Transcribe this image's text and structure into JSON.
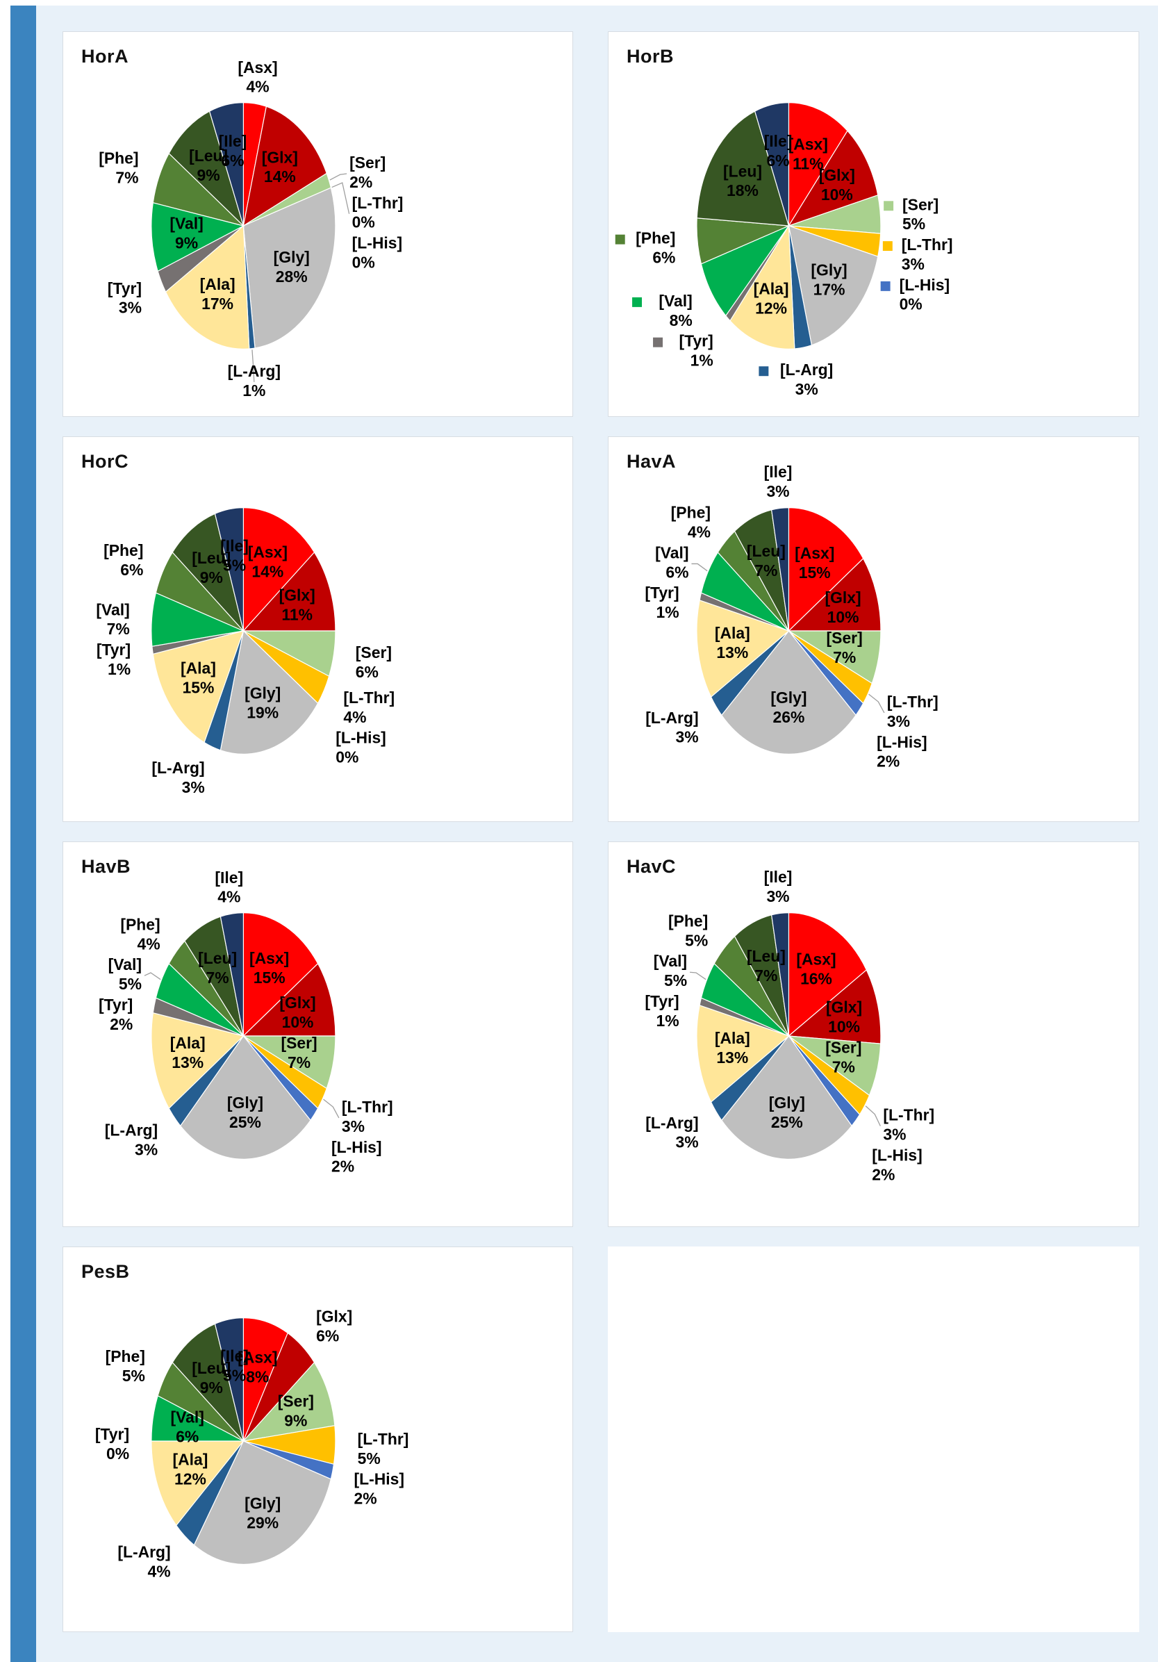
{
  "page": {
    "background_color": "#e8f1f9",
    "accent_bar_color": "#3b84bf",
    "card_background": "#ffffff",
    "card_border_color": "#d7dde3"
  },
  "chart_data": {
    "type": "pie",
    "note": "7 pie charts of relative amino-acid composition, slices clockwise from 12 o'clock",
    "categories": [
      "[Asx]",
      "[Glx]",
      "[Ser]",
      "[L-Thr]",
      "[L-His]",
      "[Gly]",
      "[L-Arg]",
      "[Ala]",
      "[Tyr]",
      "[Val]",
      "[Phe]",
      "[Leu]",
      "[Ile]"
    ],
    "colors": [
      "#FF0000",
      "#C00000",
      "#A9D18E",
      "#FFC000",
      "#4472C4",
      "#BFBFBF",
      "#255E91",
      "#FFE699",
      "#767171",
      "#00B050",
      "#548235",
      "#375623",
      "#1F3864"
    ],
    "percent_labels": true,
    "legend_position": "none",
    "charts": [
      {
        "title": "HorA",
        "values": [
          4,
          14,
          2,
          0,
          0,
          28,
          1,
          17,
          3,
          9,
          7,
          9,
          6
        ],
        "label_pos": [
          "out",
          "in",
          "out",
          "out",
          "out",
          "in",
          "out",
          "in",
          "out",
          "in",
          "out",
          "in",
          "in"
        ],
        "leader_labels": [
          "[Ser]",
          "[L-Thr]",
          "[L-Arg]"
        ],
        "outside_label_swatches": false
      },
      {
        "title": "HorB",
        "values": [
          11,
          10,
          5,
          3,
          0,
          17,
          3,
          12,
          1,
          8,
          6,
          18,
          6
        ],
        "label_pos": [
          "in",
          "in",
          "out",
          "out",
          "out",
          "in",
          "out",
          "in",
          "out",
          "out",
          "out",
          "in",
          "in"
        ],
        "leader_labels": [],
        "outside_label_swatches": true
      },
      {
        "title": "HorC",
        "values": [
          14,
          11,
          6,
          4,
          0,
          19,
          3,
          15,
          1,
          7,
          6,
          9,
          5
        ],
        "label_pos": [
          "in",
          "in",
          "out",
          "out",
          "out",
          "in",
          "out",
          "in",
          "out",
          "out",
          "out",
          "in",
          "in"
        ],
        "leader_labels": [],
        "outside_label_swatches": false
      },
      {
        "title": "HavA",
        "values": [
          15,
          10,
          7,
          3,
          2,
          26,
          3,
          13,
          1,
          6,
          4,
          7,
          3
        ],
        "label_pos": [
          "in",
          "in",
          "in",
          "out",
          "out",
          "in",
          "out",
          "in",
          "out",
          "out",
          "out",
          "in",
          "out"
        ],
        "leader_labels": [
          "[L-Thr]",
          "[Val]"
        ],
        "outside_label_swatches": false
      },
      {
        "title": "HavB",
        "values": [
          15,
          10,
          7,
          3,
          2,
          25,
          3,
          13,
          2,
          5,
          4,
          7,
          4
        ],
        "label_pos": [
          "in",
          "in",
          "in",
          "out",
          "out",
          "in",
          "out",
          "in",
          "out",
          "out",
          "out",
          "in",
          "out"
        ],
        "leader_labels": [
          "[L-Thr]",
          "[Val]"
        ],
        "outside_label_swatches": false
      },
      {
        "title": "HavC",
        "values": [
          16,
          10,
          7,
          3,
          2,
          25,
          3,
          13,
          1,
          5,
          5,
          7,
          3
        ],
        "label_pos": [
          "in",
          "in",
          "in",
          "out",
          "out",
          "in",
          "out",
          "in",
          "out",
          "out",
          "out",
          "in",
          "out"
        ],
        "leader_labels": [
          "[L-Thr]",
          "[Val]"
        ],
        "outside_label_swatches": false
      },
      {
        "title": "PesB",
        "values": [
          8,
          6,
          9,
          5,
          2,
          29,
          4,
          12,
          0,
          6,
          5,
          9,
          5
        ],
        "label_pos": [
          "in",
          "out",
          "in",
          "out",
          "out",
          "in",
          "out",
          "in",
          "out",
          "in",
          "out",
          "in",
          "in"
        ],
        "leader_labels": [],
        "outside_label_swatches": false
      }
    ]
  }
}
